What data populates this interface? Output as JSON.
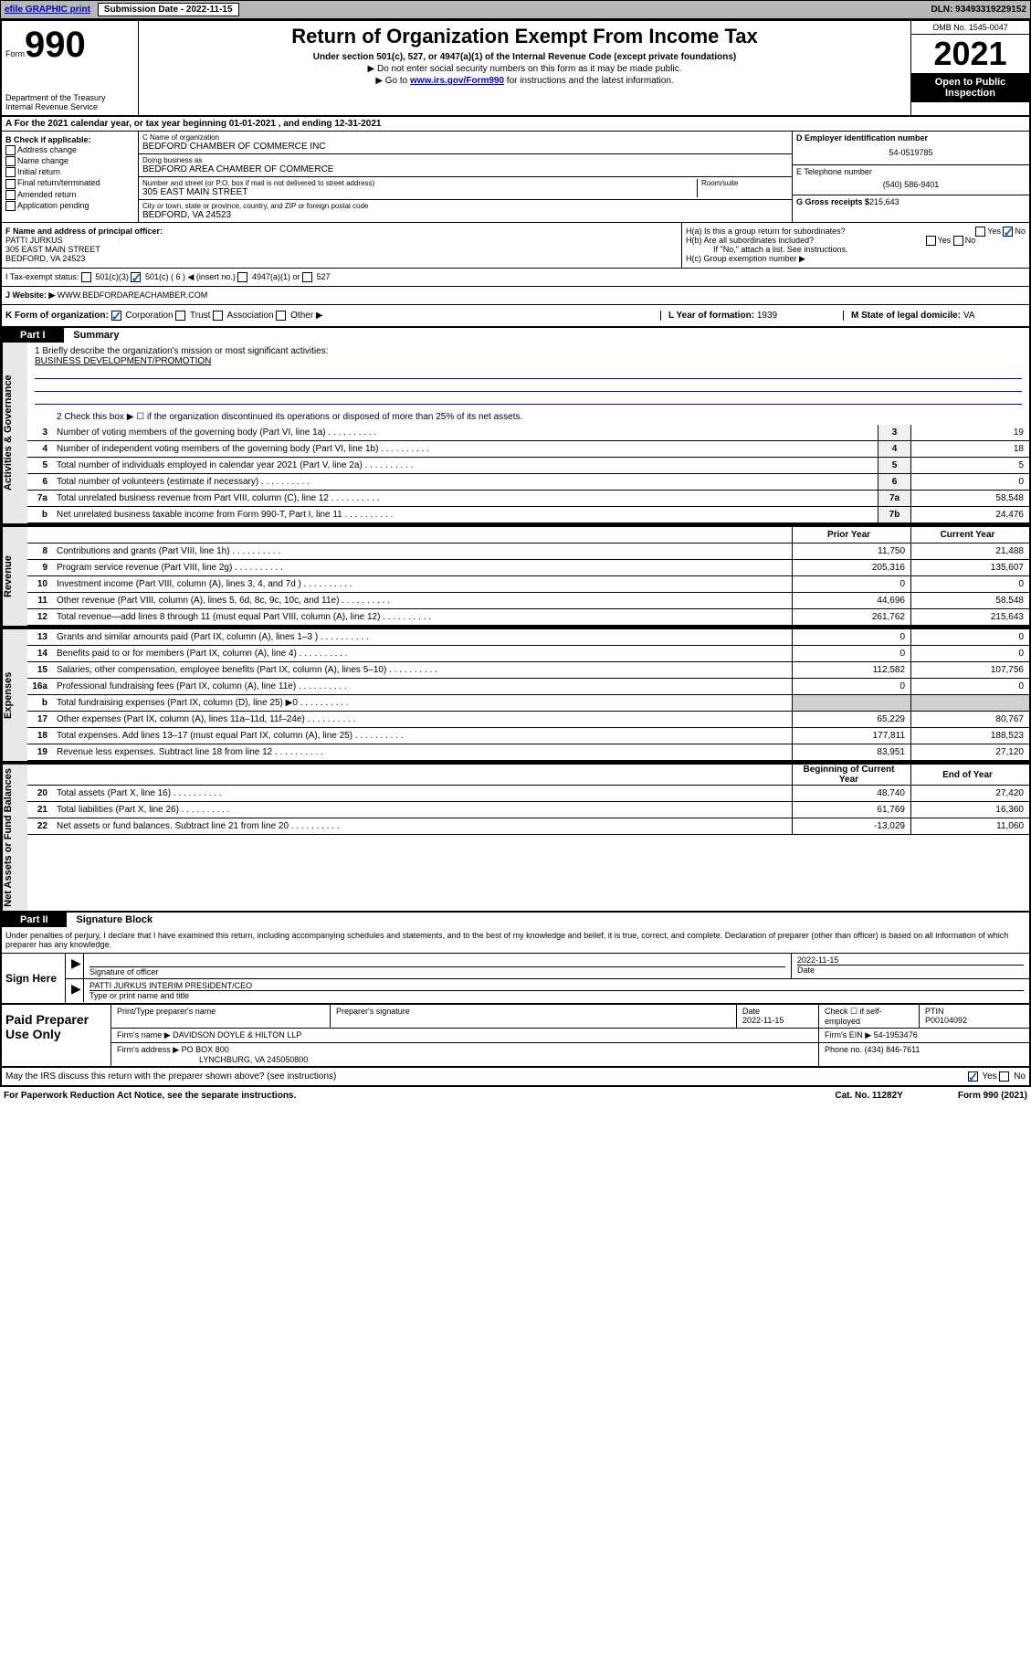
{
  "topbar": {
    "efile": "efile GRAPHIC print",
    "submission_label": "Submission Date - 2022-11-15",
    "dln": "DLN: 93493319229152"
  },
  "header": {
    "form_prefix": "Form",
    "form_number": "990",
    "dept": "Department of the Treasury",
    "irs": "Internal Revenue Service",
    "title": "Return of Organization Exempt From Income Tax",
    "subtitle": "Under section 501(c), 527, or 4947(a)(1) of the Internal Revenue Code (except private foundations)",
    "note1": "▶ Do not enter social security numbers on this form as it may be made public.",
    "note2_prefix": "▶ Go to ",
    "note2_link": "www.irs.gov/Form990",
    "note2_suffix": " for instructions and the latest information.",
    "omb": "OMB No. 1545-0047",
    "year": "2021",
    "open": "Open to Public Inspection"
  },
  "row_a": "A For the 2021 calendar year, or tax year beginning 01-01-2021   , and ending 12-31-2021",
  "col_b": {
    "heading": "B Check if applicable:",
    "items": [
      "Address change",
      "Name change",
      "Initial return",
      "Final return/terminated",
      "Amended return",
      "Application pending"
    ]
  },
  "col_c": {
    "name_lbl": "C Name of organization",
    "name": "BEDFORD CHAMBER OF COMMERCE INC",
    "dba_lbl": "Doing business as",
    "dba": "BEDFORD AREA CHAMBER OF COMMERCE",
    "street_lbl": "Number and street (or P.O. box if mail is not delivered to street address)",
    "street": "305 EAST MAIN STREET",
    "room_lbl": "Room/suite",
    "city_lbl": "City or town, state or province, country, and ZIP or foreign postal code",
    "city": "BEDFORD, VA  24523"
  },
  "col_de": {
    "d_lbl": "D Employer identification number",
    "d_val": "54-0519785",
    "e_lbl": "E Telephone number",
    "e_val": "(540) 586-9401",
    "g_lbl": "G Gross receipts $",
    "g_val": "215,643"
  },
  "row_f": {
    "lbl": "F Name and address of principal officer:",
    "name": "PATTI JURKUS",
    "street": "305 EAST MAIN STREET",
    "city": "BEDFORD, VA  24523"
  },
  "row_h": {
    "ha": "H(a)  Is this a group return for subordinates?",
    "hb": "H(b)  Are all subordinates included?",
    "hb_note": "If \"No,\" attach a list. See instructions.",
    "hc": "H(c)  Group exemption number ▶"
  },
  "row_i": {
    "lbl": "I   Tax-exempt status:",
    "opts": [
      "501(c)(3)",
      "501(c) ( 6 ) ◀ (insert no.)",
      "4947(a)(1) or",
      "527"
    ]
  },
  "row_j": {
    "lbl": "J   Website: ▶",
    "val": "WWW.BEDFORDAREACHAMBER.COM"
  },
  "row_k": {
    "lbl": "K Form of organization:",
    "opts": [
      "Corporation",
      "Trust",
      "Association",
      "Other ▶"
    ],
    "l_lbl": "L Year of formation:",
    "l_val": "1939",
    "m_lbl": "M State of legal domicile:",
    "m_val": "VA"
  },
  "part1": {
    "header": "Part I",
    "title": "Summary",
    "mission_lbl": "1   Briefly describe the organization's mission or most significant activities:",
    "mission": "BUSINESS DEVELOPMENT/PROMOTION",
    "line2": "2    Check this box ▶ ☐  if the organization discontinued its operations or disposed of more than 25% of its net assets.",
    "sidebars": {
      "gov": "Activities & Governance",
      "rev": "Revenue",
      "exp": "Expenses",
      "net": "Net Assets or Fund Balances"
    },
    "col_headers": {
      "prior": "Prior Year",
      "current": "Current Year",
      "begin": "Beginning of Current Year",
      "end": "End of Year"
    },
    "lines_gov": [
      {
        "n": "3",
        "d": "Number of voting members of the governing body (Part VI, line 1a)",
        "b": "3",
        "v": "19"
      },
      {
        "n": "4",
        "d": "Number of independent voting members of the governing body (Part VI, line 1b)",
        "b": "4",
        "v": "18"
      },
      {
        "n": "5",
        "d": "Total number of individuals employed in calendar year 2021 (Part V, line 2a)",
        "b": "5",
        "v": "5"
      },
      {
        "n": "6",
        "d": "Total number of volunteers (estimate if necessary)",
        "b": "6",
        "v": "0"
      },
      {
        "n": "7a",
        "d": "Total unrelated business revenue from Part VIII, column (C), line 12",
        "b": "7a",
        "v": "58,548"
      },
      {
        "n": "b",
        "d": "Net unrelated business taxable income from Form 990-T, Part I, line 11",
        "b": "7b",
        "v": "24,476"
      }
    ],
    "lines_rev": [
      {
        "n": "8",
        "d": "Contributions and grants (Part VIII, line 1h)",
        "p": "11,750",
        "c": "21,488"
      },
      {
        "n": "9",
        "d": "Program service revenue (Part VIII, line 2g)",
        "p": "205,316",
        "c": "135,607"
      },
      {
        "n": "10",
        "d": "Investment income (Part VIII, column (A), lines 3, 4, and 7d )",
        "p": "0",
        "c": "0"
      },
      {
        "n": "11",
        "d": "Other revenue (Part VIII, column (A), lines 5, 6d, 8c, 9c, 10c, and 11e)",
        "p": "44,696",
        "c": "58,548"
      },
      {
        "n": "12",
        "d": "Total revenue—add lines 8 through 11 (must equal Part VIII, column (A), line 12)",
        "p": "261,762",
        "c": "215,643"
      }
    ],
    "lines_exp": [
      {
        "n": "13",
        "d": "Grants and similar amounts paid (Part IX, column (A), lines 1–3 )",
        "p": "0",
        "c": "0"
      },
      {
        "n": "14",
        "d": "Benefits paid to or for members (Part IX, column (A), line 4)",
        "p": "0",
        "c": "0"
      },
      {
        "n": "15",
        "d": "Salaries, other compensation, employee benefits (Part IX, column (A), lines 5–10)",
        "p": "112,582",
        "c": "107,756"
      },
      {
        "n": "16a",
        "d": "Professional fundraising fees (Part IX, column (A), line 11e)",
        "p": "0",
        "c": "0"
      },
      {
        "n": "b",
        "d": "Total fundraising expenses (Part IX, column (D), line 25) ▶0",
        "p": "",
        "c": "",
        "gray": true
      },
      {
        "n": "17",
        "d": "Other expenses (Part IX, column (A), lines 11a–11d, 11f–24e)",
        "p": "65,229",
        "c": "80,767"
      },
      {
        "n": "18",
        "d": "Total expenses. Add lines 13–17 (must equal Part IX, column (A), line 25)",
        "p": "177,811",
        "c": "188,523"
      },
      {
        "n": "19",
        "d": "Revenue less expenses. Subtract line 18 from line 12",
        "p": "83,951",
        "c": "27,120"
      }
    ],
    "lines_net": [
      {
        "n": "20",
        "d": "Total assets (Part X, line 16)",
        "p": "48,740",
        "c": "27,420"
      },
      {
        "n": "21",
        "d": "Total liabilities (Part X, line 26)",
        "p": "61,769",
        "c": "16,360"
      },
      {
        "n": "22",
        "d": "Net assets or fund balances. Subtract line 21 from line 20",
        "p": "-13,029",
        "c": "11,060"
      }
    ]
  },
  "part2": {
    "header": "Part II",
    "title": "Signature Block",
    "decl": "Under penalties of perjury, I declare that I have examined this return, including accompanying schedules and statements, and to the best of my knowledge and belief, it is true, correct, and complete. Declaration of preparer (other than officer) is based on all information of which preparer has any knowledge."
  },
  "sign": {
    "label": "Sign Here",
    "sig_lbl": "Signature of officer",
    "date_lbl": "Date",
    "date_val": "2022-11-15",
    "name": "PATTI JURKUS  INTERIM PRESIDENT/CEO",
    "name_lbl": "Type or print name and title"
  },
  "prep": {
    "label": "Paid Preparer Use Only",
    "h1": "Print/Type preparer's name",
    "h2": "Preparer's signature",
    "h3": "Date",
    "h3v": "2022-11-15",
    "h4": "Check ☐ if self-employed",
    "h5": "PTIN",
    "h5v": "P00104092",
    "firm_name_lbl": "Firm's name    ▶",
    "firm_name": "DAVIDSON DOYLE & HILTON LLP",
    "firm_ein_lbl": "Firm's EIN ▶",
    "firm_ein": "54-1953476",
    "firm_addr_lbl": "Firm's address ▶",
    "firm_addr1": "PO BOX 800",
    "firm_addr2": "LYNCHBURG, VA  245050800",
    "phone_lbl": "Phone no.",
    "phone": "(434) 846-7611"
  },
  "footer": {
    "q": "May the IRS discuss this return with the preparer shown above? (see instructions)",
    "yes": "Yes",
    "no": "No",
    "paperwork": "For Paperwork Reduction Act Notice, see the separate instructions.",
    "cat": "Cat. No. 11282Y",
    "form": "Form 990 (2021)"
  }
}
